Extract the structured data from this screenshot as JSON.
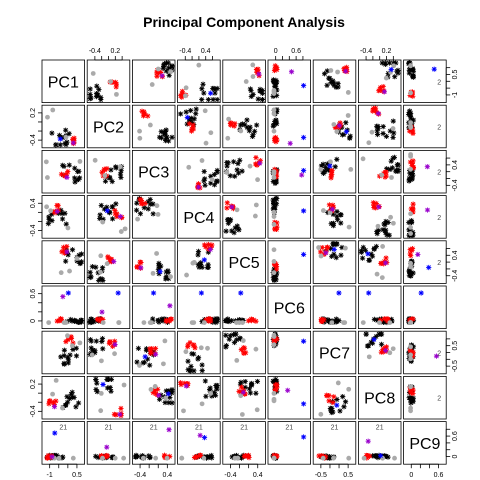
{
  "chart_data": {
    "type": "scatter",
    "title": "Principal Component Analysis",
    "variables": [
      "PC1",
      "PC2",
      "PC3",
      "PC4",
      "PC5",
      "PC6",
      "PC7",
      "PC8",
      "PC9"
    ],
    "axes": {
      "top": [
        {
          "col": 1,
          "ticks": [
            -0.4,
            0.2
          ]
        },
        {
          "col": 3,
          "ticks": [
            -0.4,
            0.4
          ]
        },
        {
          "col": 5,
          "ticks": [
            0.0,
            0.6
          ]
        },
        {
          "col": 7,
          "ticks": [
            -0.4,
            0.2
          ]
        }
      ],
      "bottom": [
        {
          "col": 0,
          "ticks": [
            -1.0,
            0.5
          ]
        },
        {
          "col": 2,
          "ticks": [
            -0.4,
            0.4
          ]
        },
        {
          "col": 4,
          "ticks": [
            -0.4,
            0.4
          ]
        },
        {
          "col": 6,
          "ticks": [
            -0.5,
            0.5
          ]
        },
        {
          "col": 8,
          "ticks": [
            0.0,
            0.6
          ]
        }
      ],
      "left": [
        {
          "row": 1,
          "ticks": [
            -0.4,
            0.2
          ]
        },
        {
          "row": 3,
          "ticks": [
            -0.4,
            0.4
          ]
        },
        {
          "row": 5,
          "ticks": [
            0.0,
            0.6
          ]
        },
        {
          "row": 7,
          "ticks": [
            -0.4,
            0.2
          ]
        }
      ],
      "right": [
        {
          "row": 0,
          "ticks": [
            -1.0,
            0.5
          ]
        },
        {
          "row": 2,
          "ticks": [
            -0.4,
            0.4
          ]
        },
        {
          "row": 4,
          "ticks": [
            -0.4,
            0.4
          ]
        },
        {
          "row": 6,
          "ticks": [
            -0.5,
            0.5
          ]
        },
        {
          "row": 8,
          "ticks": [
            0.0,
            0.6
          ]
        }
      ]
    },
    "groups": [
      {
        "color": "#000000",
        "marker": "asterisk"
      },
      {
        "color": "#aaaaaa",
        "marker": "circle"
      },
      {
        "color": "#ff0000",
        "marker": "asterisk"
      },
      {
        "color": "#0000ff",
        "marker": "asterisk"
      },
      {
        "color": "#9900cc",
        "marker": "asterisk"
      }
    ],
    "annotation_text": "21",
    "annotation_text_secondary": "2"
  }
}
